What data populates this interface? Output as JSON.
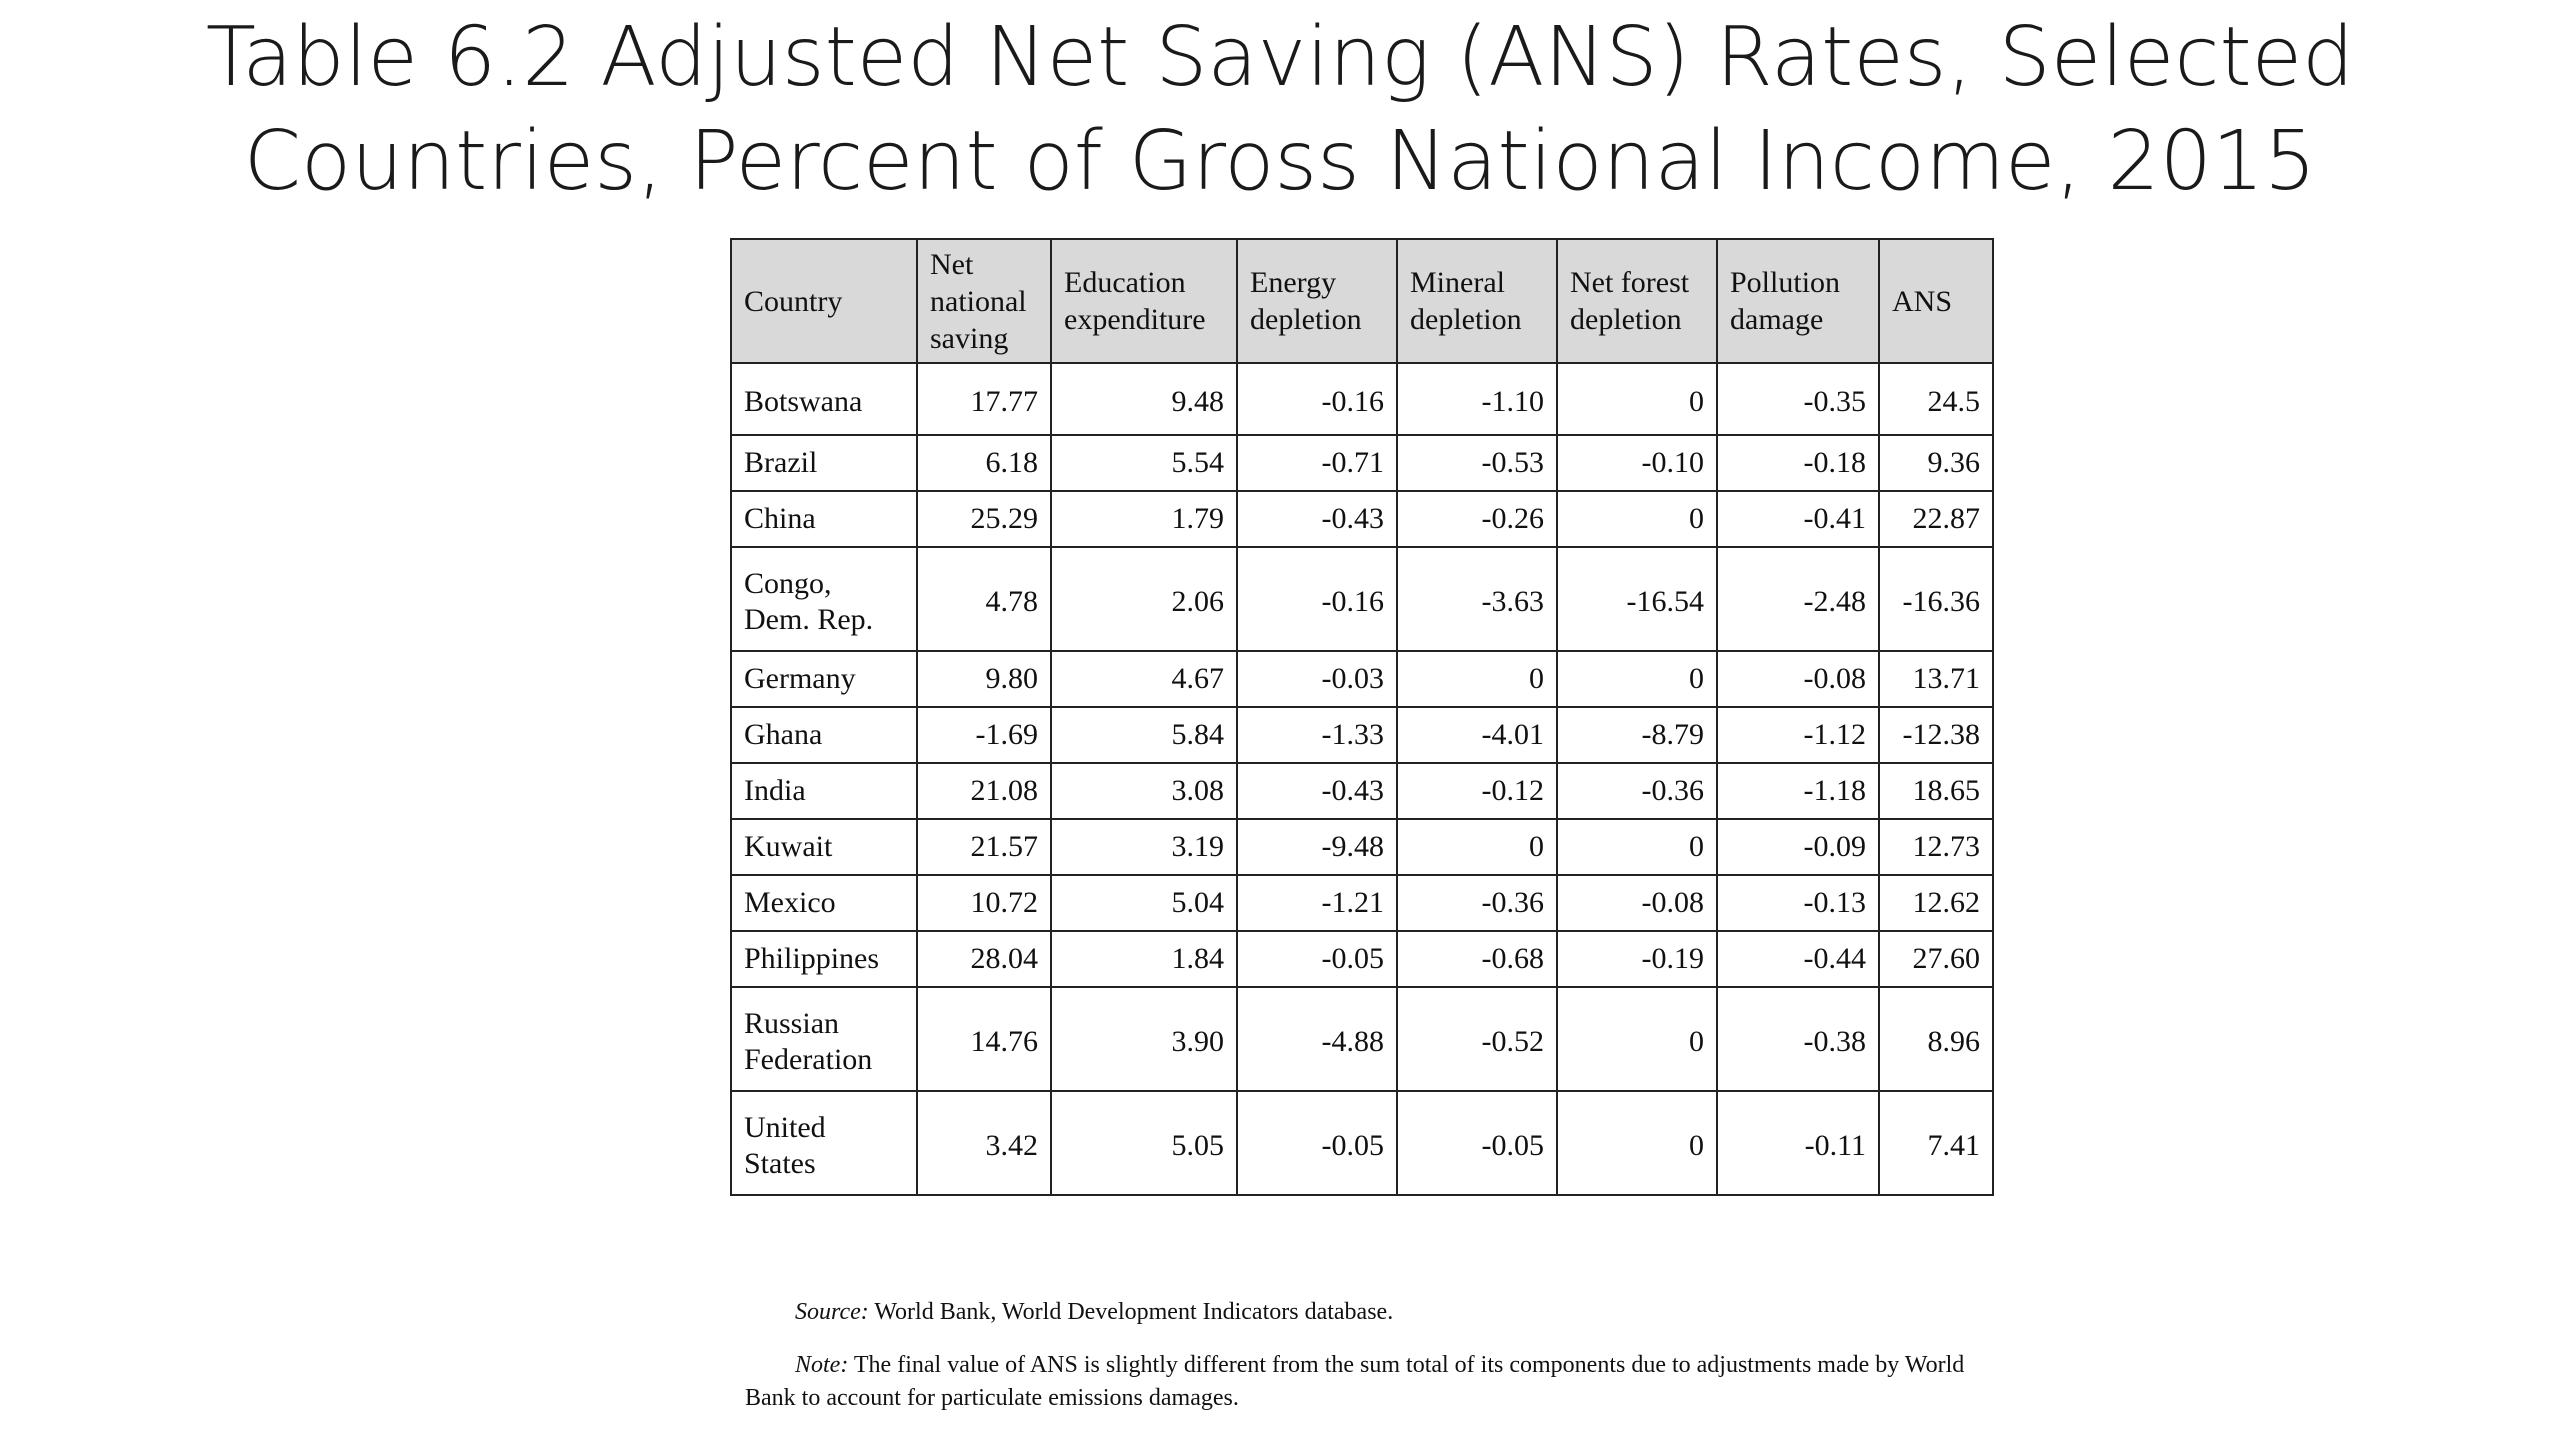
{
  "title": {
    "line1": "Table 6.2 Adjusted Net Saving (ANS) Rates, Selected",
    "line2": "Countries, Percent of Gross National Income, 2015"
  },
  "table": {
    "headers": [
      "Country",
      "Net national saving",
      "Education expenditure",
      "Energy depletion",
      "Mineral depletion",
      "Net forest depletion",
      "Pollution damage",
      "ANS"
    ],
    "rows": [
      [
        "Botswana",
        "17.77",
        "9.48",
        "-0.16",
        "-1.10",
        "0",
        "-0.35",
        "24.5"
      ],
      [
        "Brazil",
        "6.18",
        "5.54",
        "-0.71",
        "-0.53",
        "-0.10",
        "-0.18",
        "9.36"
      ],
      [
        "China",
        "25.29",
        "1.79",
        "-0.43",
        "-0.26",
        "0",
        "-0.41",
        "22.87"
      ],
      [
        "Congo, Dem. Rep.",
        "4.78",
        "2.06",
        "-0.16",
        "-3.63",
        "-16.54",
        "-2.48",
        "-16.36"
      ],
      [
        "Germany",
        "9.80",
        "4.67",
        "-0.03",
        "0",
        "0",
        "-0.08",
        "13.71"
      ],
      [
        "Ghana",
        "-1.69",
        "5.84",
        "-1.33",
        "-4.01",
        "-8.79",
        "-1.12",
        "-12.38"
      ],
      [
        "India",
        "21.08",
        "3.08",
        "-0.43",
        "-0.12",
        "-0.36",
        "-1.18",
        "18.65"
      ],
      [
        "Kuwait",
        "21.57",
        "3.19",
        "-9.48",
        "0",
        "0",
        "-0.09",
        "12.73"
      ],
      [
        "Mexico",
        "10.72",
        "5.04",
        "-1.21",
        "-0.36",
        "-0.08",
        "-0.13",
        "12.62"
      ],
      [
        "Philippines",
        "28.04",
        "1.84",
        "-0.05",
        "-0.68",
        "-0.19",
        "-0.44",
        "27.60"
      ],
      [
        "Russian Federation",
        "14.76",
        "3.90",
        "-4.88",
        "-0.52",
        "0",
        "-0.38",
        "8.96"
      ],
      [
        "United States",
        "3.42",
        "5.05",
        "-0.05",
        "-0.05",
        "0",
        "-0.11",
        "7.41"
      ]
    ]
  },
  "notes": {
    "source_label": "Source:",
    "source_text": " World Bank, World Development Indicators database.",
    "note_label": "Note:",
    "note_text": " The final value of ANS is slightly different from the sum total of its components due to adjustments made by World Bank to account for particulate emissions damages."
  }
}
